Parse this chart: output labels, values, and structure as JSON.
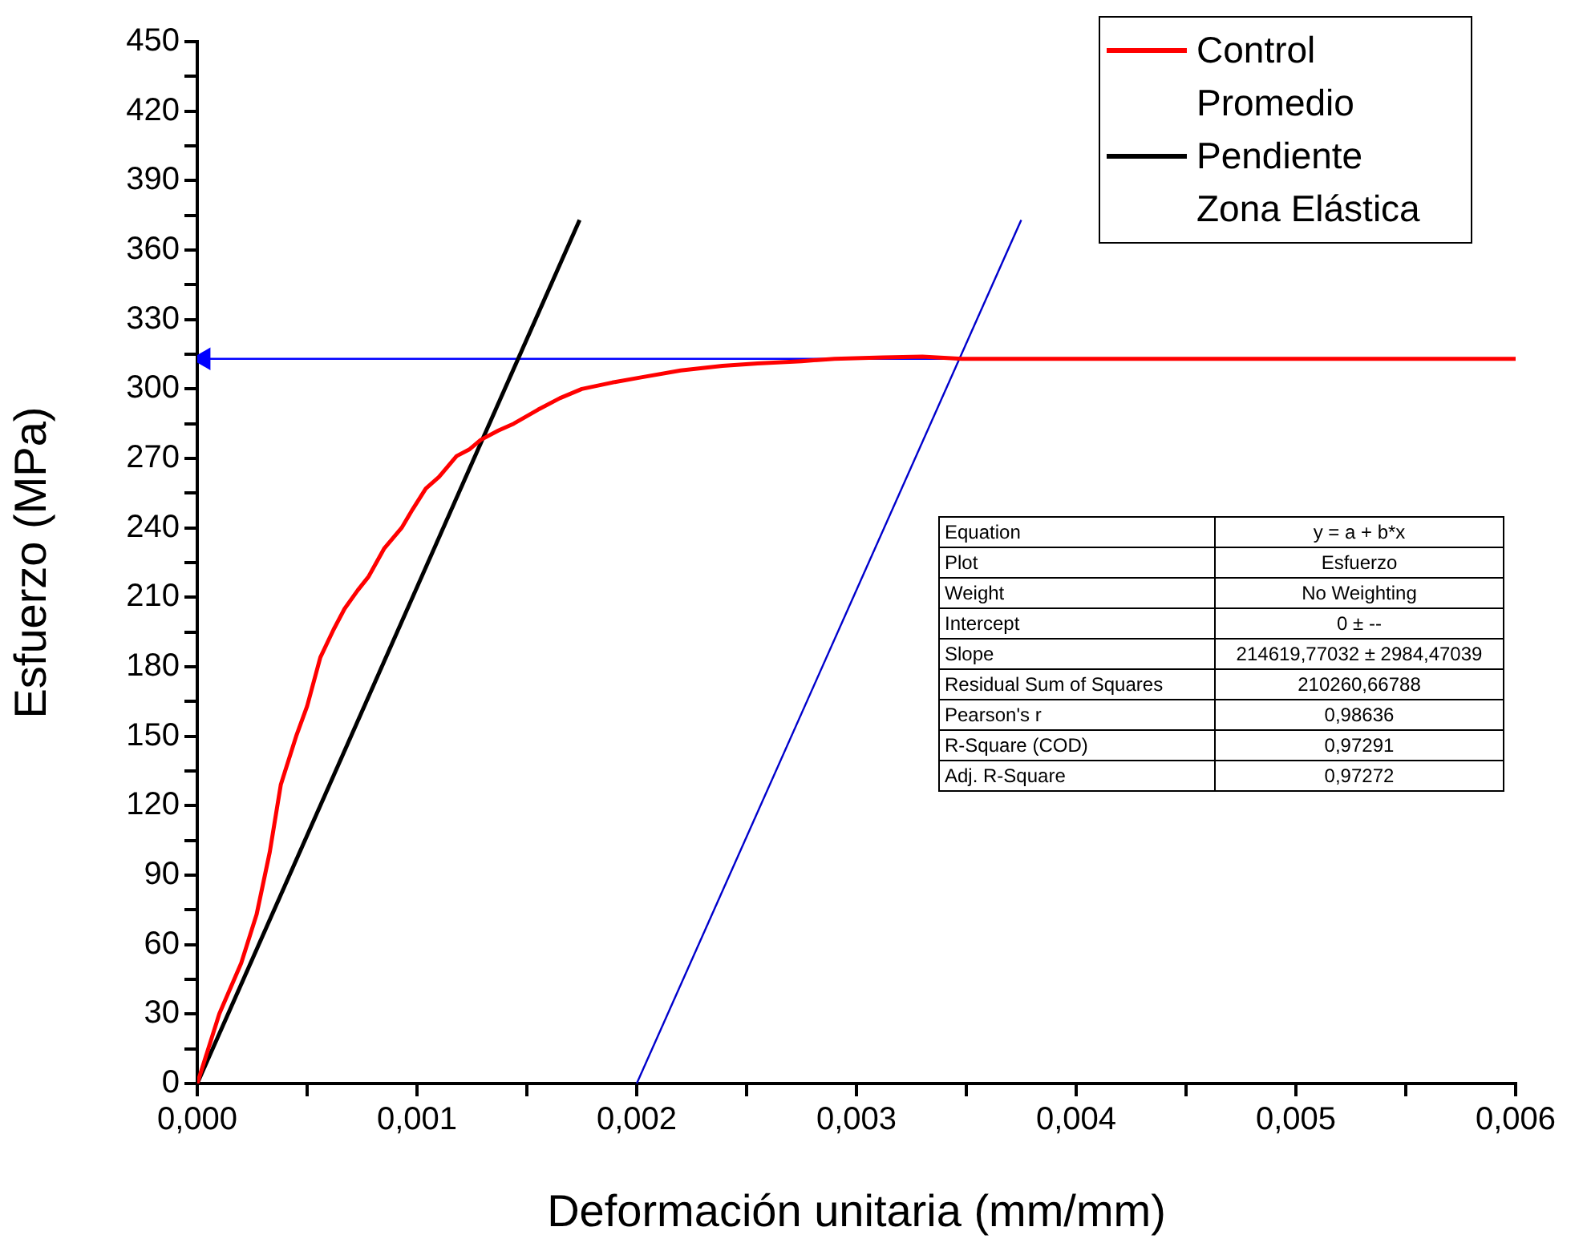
{
  "chart_data": {
    "type": "line",
    "xlabel": "Deformación unitaria (mm/mm)",
    "ylabel": "Esfuerzo (MPa)",
    "xlim": [
      0,
      0.006
    ],
    "ylim": [
      0,
      450
    ],
    "xticks": [
      {
        "value": 0,
        "label": "0,000"
      },
      {
        "value": 0.0005,
        "label": null
      },
      {
        "value": 0.001,
        "label": "0,001"
      },
      {
        "value": 0.0015,
        "label": null
      },
      {
        "value": 0.002,
        "label": "0,002"
      },
      {
        "value": 0.0025,
        "label": null
      },
      {
        "value": 0.003,
        "label": "0,003"
      },
      {
        "value": 0.0035,
        "label": null
      },
      {
        "value": 0.004,
        "label": "0,004"
      },
      {
        "value": 0.0045,
        "label": null
      },
      {
        "value": 0.005,
        "label": "0,005"
      },
      {
        "value": 0.0055,
        "label": null
      },
      {
        "value": 0.006,
        "label": "0,006"
      }
    ],
    "yticks": [
      0,
      {
        "value": 15,
        "label": null
      },
      30,
      {
        "value": 45,
        "label": null
      },
      60,
      {
        "value": 75,
        "label": null
      },
      90,
      {
        "value": 105,
        "label": null
      },
      120,
      {
        "value": 135,
        "label": null
      },
      150,
      {
        "value": 165,
        "label": null
      },
      180,
      {
        "value": 195,
        "label": null
      },
      210,
      {
        "value": 225,
        "label": null
      },
      240,
      {
        "value": 255,
        "label": null
      },
      270,
      {
        "value": 285,
        "label": null
      },
      300,
      {
        "value": 315,
        "label": null
      },
      330,
      {
        "value": 345,
        "label": null
      },
      360,
      {
        "value": 375,
        "label": null
      },
      390,
      {
        "value": 405,
        "label": null
      },
      420,
      {
        "value": 435,
        "label": null
      },
      450
    ],
    "grid": false,
    "legend": "top right",
    "marker": "none",
    "line_style": "solid",
    "series": [
      {
        "name": "Control Promedio",
        "color": "#ff0000",
        "x": [
          0,
          0.0001,
          0.0002,
          0.00027,
          0.00033,
          0.00038,
          0.00045,
          0.0005,
          0.00056,
          0.00062,
          0.00067,
          0.00073,
          0.00078,
          0.00085,
          0.00093,
          0.00098,
          0.00104,
          0.0011,
          0.00118,
          0.00124,
          0.00129,
          0.00137,
          0.00144,
          0.00155,
          0.00165,
          0.00175,
          0.0019,
          0.00202,
          0.0022,
          0.00239,
          0.00255,
          0.00275,
          0.0029,
          0.00312,
          0.0033,
          0.00348,
          0.004,
          0.005,
          0.006
        ],
        "values": [
          0,
          30,
          52,
          73,
          100,
          129,
          150,
          163,
          184,
          196,
          205,
          213,
          219,
          231,
          240,
          248,
          257,
          262,
          271,
          274,
          278,
          282,
          285,
          291,
          296,
          300,
          303,
          305,
          308,
          310,
          311,
          312,
          313,
          313.6,
          314,
          313,
          313,
          313,
          313
        ]
      },
      {
        "name": "Pendiente Zona Elástica",
        "color": "#000000",
        "x": [
          0,
          0.00174
        ],
        "values": [
          0,
          373
        ]
      },
      {
        "color": "#0000cc",
        "x": [
          0.002,
          0.00375
        ],
        "values": [
          0,
          373
        ]
      },
      {
        "color": "#0000ff",
        "marker": "triangle",
        "x": [
          0.00348,
          3e-05
        ],
        "values": [
          313,
          313
        ]
      }
    ],
    "annotations": [
      "Equation",
      "y = a + b*x",
      "Plot",
      "Esfuerzo",
      "Weight",
      "No Weighting",
      "Intercept",
      "0 ± --",
      "Slope",
      "214619,77032 ± 2984,47039",
      "Residual Sum of Squares",
      "210260,66788",
      "Pearson's r",
      "0,98636",
      "R-Square (COD)",
      "0,97291",
      "Adj. R-Square",
      "0,97272"
    ]
  }
}
